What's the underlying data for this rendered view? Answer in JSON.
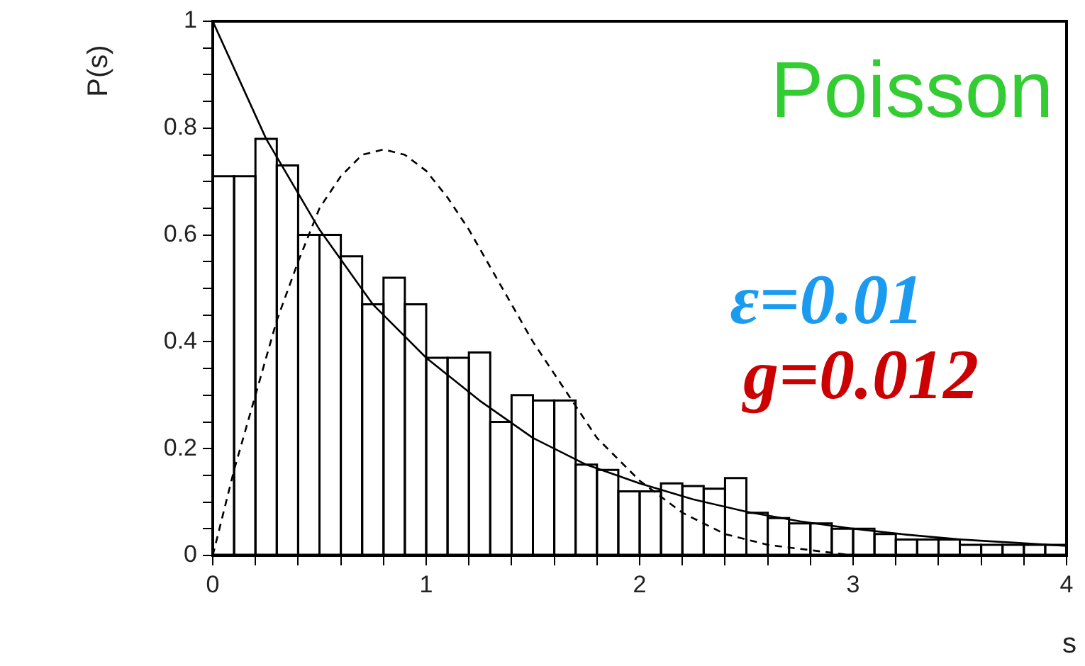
{
  "chart_data": {
    "type": "histogram",
    "xlabel": "s",
    "ylabel": "P(s)",
    "annotations": [
      "Poisson",
      "ε=0.01",
      "g=0.012"
    ],
    "bins": [
      0,
      0.1,
      0.2,
      0.3,
      0.4,
      0.5,
      0.6,
      0.7,
      0.8,
      0.9,
      1.0,
      1.1,
      1.2,
      1.3,
      1.4,
      1.5,
      1.6,
      1.7,
      1.8,
      1.9,
      2.0,
      2.1,
      2.2,
      2.3,
      2.4,
      2.5,
      2.6,
      2.7,
      2.8,
      2.9,
      3.0,
      3.1,
      3.2,
      3.3,
      3.4,
      3.5,
      3.6,
      3.7,
      3.8,
      3.9,
      4.0
    ],
    "values": [
      0.71,
      0.71,
      0.78,
      0.73,
      0.6,
      0.6,
      0.56,
      0.47,
      0.52,
      0.47,
      0.37,
      0.37,
      0.38,
      0.25,
      0.3,
      0.29,
      0.29,
      0.17,
      0.16,
      0.12,
      0.12,
      0.135,
      0.13,
      0.125,
      0.145,
      0.08,
      0.07,
      0.06,
      0.06,
      0.05,
      0.05,
      0.04,
      0.03,
      0.03,
      0.03,
      0.02,
      0.02,
      0.02,
      0.02,
      0.02
    ],
    "color": "#000000",
    "series": [
      {
        "type": "line",
        "line_style": "solid",
        "color": "#000000",
        "x": [
          0,
          0.25,
          0.5,
          0.75,
          1,
          1.25,
          1.5,
          1.75,
          2,
          2.25,
          2.5,
          2.75,
          3,
          3.25,
          3.5,
          3.75,
          4
        ],
        "values": [
          1,
          0.78,
          0.61,
          0.47,
          0.37,
          0.29,
          0.22,
          0.17,
          0.135,
          0.105,
          0.082,
          0.064,
          0.05,
          0.039,
          0.03,
          0.024,
          0.018
        ]
      },
      {
        "type": "line",
        "line_style": "dashed",
        "color": "#000000",
        "x": [
          0,
          0.1,
          0.2,
          0.3,
          0.4,
          0.5,
          0.6,
          0.7,
          0.8,
          0.9,
          1.0,
          1.1,
          1.2,
          1.3,
          1.4,
          1.5,
          1.6,
          1.7,
          1.8,
          1.9,
          2.0,
          2.2,
          2.4,
          2.6,
          2.8,
          3.0,
          3.5,
          4.0
        ],
        "values": [
          0,
          0.16,
          0.3,
          0.44,
          0.55,
          0.65,
          0.71,
          0.75,
          0.76,
          0.75,
          0.72,
          0.67,
          0.61,
          0.54,
          0.47,
          0.4,
          0.34,
          0.28,
          0.22,
          0.18,
          0.14,
          0.08,
          0.04,
          0.02,
          0.01,
          0.0,
          0.0,
          0.0
        ]
      }
    ],
    "xlim": [
      0,
      4
    ],
    "ylim": [
      0,
      1
    ],
    "xticks": [
      0,
      {
        "value": 0.2,
        "label": null
      },
      {
        "value": 0.4,
        "label": null
      },
      {
        "value": 0.6,
        "label": null
      },
      {
        "value": 0.8,
        "label": null
      },
      1,
      {
        "value": 1.2,
        "label": null
      },
      {
        "value": 1.4,
        "label": null
      },
      {
        "value": 1.6,
        "label": null
      },
      {
        "value": 1.8,
        "label": null
      },
      2,
      {
        "value": 2.2,
        "label": null
      },
      {
        "value": 2.4,
        "label": null
      },
      {
        "value": 2.6,
        "label": null
      },
      {
        "value": 2.8,
        "label": null
      },
      3,
      {
        "value": 3.2,
        "label": null
      },
      {
        "value": 3.4,
        "label": null
      },
      {
        "value": 3.6,
        "label": null
      },
      {
        "value": 3.8,
        "label": null
      },
      4
    ],
    "yticks": [
      0,
      {
        "value": 0.05,
        "label": null
      },
      {
        "value": 0.1,
        "label": null
      },
      {
        "value": 0.15,
        "label": null
      },
      0.2,
      {
        "value": 0.25,
        "label": null
      },
      {
        "value": 0.3,
        "label": null
      },
      {
        "value": 0.35,
        "label": null
      },
      0.4,
      {
        "value": 0.45,
        "label": null
      },
      {
        "value": 0.5,
        "label": null
      },
      {
        "value": 0.55,
        "label": null
      },
      0.6,
      {
        "value": 0.65,
        "label": null
      },
      {
        "value": 0.7,
        "label": null
      },
      {
        "value": 0.75,
        "label": null
      },
      0.8,
      {
        "value": 0.85,
        "label": null
      },
      {
        "value": 0.9,
        "label": null
      },
      {
        "value": 0.95,
        "label": null
      },
      1
    ],
    "grid": false,
    "legend": false
  }
}
